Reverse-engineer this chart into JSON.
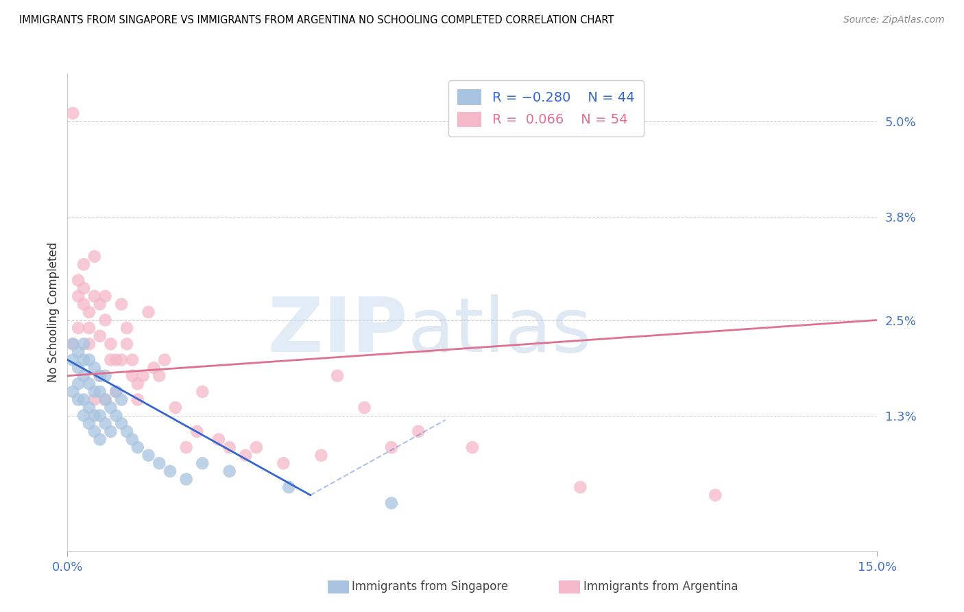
{
  "title": "IMMIGRANTS FROM SINGAPORE VS IMMIGRANTS FROM ARGENTINA NO SCHOOLING COMPLETED CORRELATION CHART",
  "source": "Source: ZipAtlas.com",
  "ylabel": "No Schooling Completed",
  "ytick_labels": [
    "5.0%",
    "3.8%",
    "2.5%",
    "1.3%"
  ],
  "ytick_values": [
    0.05,
    0.038,
    0.025,
    0.013
  ],
  "xlim": [
    0.0,
    0.15
  ],
  "ylim": [
    -0.004,
    0.056
  ],
  "color_singapore": "#a8c4e0",
  "color_argentina": "#f4b8c8",
  "color_line_singapore": "#3366cc",
  "color_line_argentina": "#e07090",
  "color_axis_labels": "#4472c4",
  "background": "#ffffff",
  "sg_line_x0": 0.0,
  "sg_line_y0": 0.02,
  "sg_line_x1": 0.045,
  "sg_line_y1": 0.003,
  "arg_line_x0": 0.0,
  "arg_line_y0": 0.018,
  "arg_line_x1": 0.15,
  "arg_line_y1": 0.025,
  "sg_scatter_x": [
    0.001,
    0.001,
    0.001,
    0.002,
    0.002,
    0.002,
    0.002,
    0.003,
    0.003,
    0.003,
    0.003,
    0.003,
    0.004,
    0.004,
    0.004,
    0.004,
    0.005,
    0.005,
    0.005,
    0.005,
    0.006,
    0.006,
    0.006,
    0.006,
    0.007,
    0.007,
    0.007,
    0.008,
    0.008,
    0.009,
    0.009,
    0.01,
    0.01,
    0.011,
    0.012,
    0.013,
    0.015,
    0.017,
    0.019,
    0.022,
    0.025,
    0.03,
    0.041,
    0.06
  ],
  "sg_scatter_y": [
    0.016,
    0.02,
    0.022,
    0.015,
    0.017,
    0.019,
    0.021,
    0.013,
    0.015,
    0.018,
    0.02,
    0.022,
    0.012,
    0.014,
    0.017,
    0.02,
    0.011,
    0.013,
    0.016,
    0.019,
    0.01,
    0.013,
    0.016,
    0.018,
    0.012,
    0.015,
    0.018,
    0.011,
    0.014,
    0.013,
    0.016,
    0.012,
    0.015,
    0.011,
    0.01,
    0.009,
    0.008,
    0.007,
    0.006,
    0.005,
    0.007,
    0.006,
    0.004,
    0.002
  ],
  "arg_scatter_x": [
    0.001,
    0.001,
    0.002,
    0.002,
    0.002,
    0.003,
    0.003,
    0.003,
    0.004,
    0.004,
    0.004,
    0.005,
    0.005,
    0.005,
    0.006,
    0.006,
    0.006,
    0.007,
    0.007,
    0.007,
    0.008,
    0.008,
    0.009,
    0.009,
    0.01,
    0.01,
    0.011,
    0.011,
    0.012,
    0.012,
    0.013,
    0.013,
    0.014,
    0.015,
    0.016,
    0.017,
    0.018,
    0.02,
    0.022,
    0.024,
    0.025,
    0.028,
    0.03,
    0.033,
    0.035,
    0.04,
    0.047,
    0.05,
    0.055,
    0.06,
    0.065,
    0.075,
    0.095,
    0.12
  ],
  "arg_scatter_y": [
    0.051,
    0.022,
    0.028,
    0.024,
    0.03,
    0.032,
    0.029,
    0.027,
    0.024,
    0.022,
    0.026,
    0.033,
    0.028,
    0.015,
    0.027,
    0.023,
    0.018,
    0.028,
    0.025,
    0.015,
    0.02,
    0.022,
    0.02,
    0.016,
    0.027,
    0.02,
    0.022,
    0.024,
    0.018,
    0.02,
    0.015,
    0.017,
    0.018,
    0.026,
    0.019,
    0.018,
    0.02,
    0.014,
    0.009,
    0.011,
    0.016,
    0.01,
    0.009,
    0.008,
    0.009,
    0.007,
    0.008,
    0.018,
    0.014,
    0.009,
    0.011,
    0.009,
    0.004,
    0.003
  ]
}
